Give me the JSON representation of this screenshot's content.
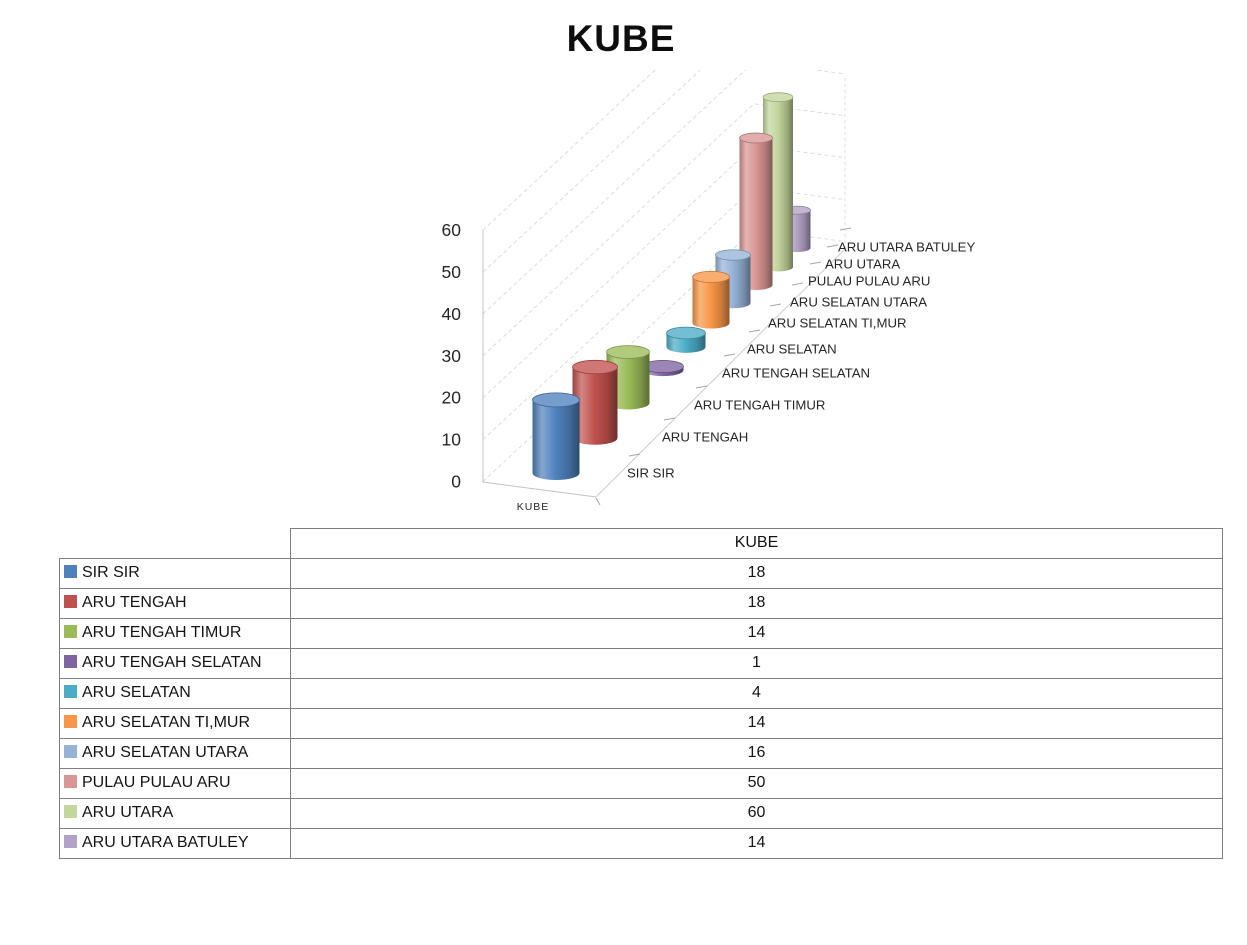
{
  "title": "KUBE",
  "chart_data": {
    "type": "bar",
    "subtype": "3d-cylinder",
    "title": "KUBE",
    "series_name": "KUBE",
    "categories": [
      "SIR SIR",
      "ARU TENGAH",
      "ARU TENGAH TIMUR",
      "ARU TENGAH SELATAN",
      "ARU SELATAN",
      "ARU SELATAN TI,MUR",
      "ARU SELATAN UTARA",
      "PULAU PULAU ARU",
      "ARU UTARA",
      "ARU UTARA BATULEY"
    ],
    "values": [
      18,
      18,
      14,
      1,
      4,
      14,
      16,
      50,
      60,
      14
    ],
    "colors": [
      "#4F81BD",
      "#C0504D",
      "#9BBB59",
      "#8064A2",
      "#4BACC6",
      "#F79646",
      "#95B3D7",
      "#D99694",
      "#C3D69B",
      "#B3A2C7"
    ],
    "ylim": [
      0,
      60
    ],
    "yticks": [
      0,
      10,
      20,
      30,
      40,
      50,
      60
    ],
    "xlabel": "KUBE",
    "grid": true,
    "grid_style": "dashed",
    "legend_position": "data-table-below"
  },
  "table": {
    "header_label": "KUBE",
    "rows": [
      {
        "label": "SIR SIR",
        "value": "18"
      },
      {
        "label": "ARU TENGAH",
        "value": "18"
      },
      {
        "label": "ARU TENGAH TIMUR",
        "value": "14"
      },
      {
        "label": "ARU TENGAH SELATAN",
        "value": "1"
      },
      {
        "label": "ARU SELATAN",
        "value": "4"
      },
      {
        "label": "ARU SELATAN TI,MUR",
        "value": "14"
      },
      {
        "label": "ARU SELATAN UTARA",
        "value": "16"
      },
      {
        "label": "PULAU PULAU ARU",
        "value": "50"
      },
      {
        "label": "ARU UTARA",
        "value": "60"
      },
      {
        "label": "ARU UTARA BATULEY",
        "value": "14"
      }
    ]
  }
}
